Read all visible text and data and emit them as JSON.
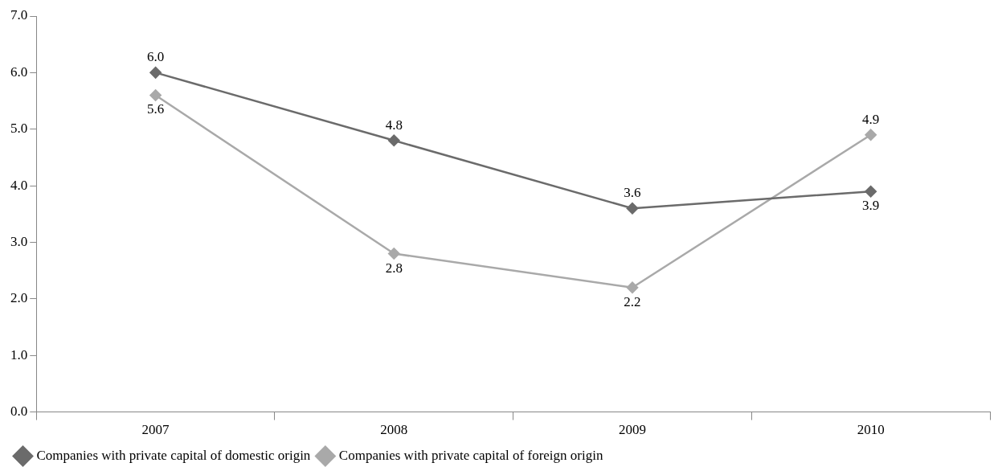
{
  "chart_data": {
    "type": "line",
    "categories": [
      "2007",
      "2008",
      "2009",
      "2010"
    ],
    "series": [
      {
        "name": "Companies with private capital of domestic origin",
        "color": "#6b6b6b",
        "values": [
          6.0,
          4.8,
          3.6,
          3.9
        ],
        "value_labels": [
          "6.0",
          "4.8",
          "3.6",
          "3.9"
        ]
      },
      {
        "name": "Companies with private capital of foreign origin",
        "color": "#a9a9a9",
        "values": [
          5.6,
          2.8,
          2.2,
          4.9
        ],
        "value_labels": [
          "5.6",
          "2.8",
          "2.2",
          "4.9"
        ]
      }
    ],
    "ylim": [
      0,
      7
    ],
    "yticks": [
      {
        "value": 0,
        "label": "0.0"
      },
      {
        "value": 1,
        "label": "1.0"
      },
      {
        "value": 2,
        "label": "2.0"
      },
      {
        "value": 3,
        "label": "3.0"
      },
      {
        "value": 4,
        "label": "4.0"
      },
      {
        "value": 5,
        "label": "5.0"
      },
      {
        "value": 6,
        "label": "6.0"
      },
      {
        "value": 7,
        "label": "7.0"
      }
    ],
    "grid": false,
    "legend": "bottom left",
    "marker": "diamond",
    "line_style": "solid"
  }
}
